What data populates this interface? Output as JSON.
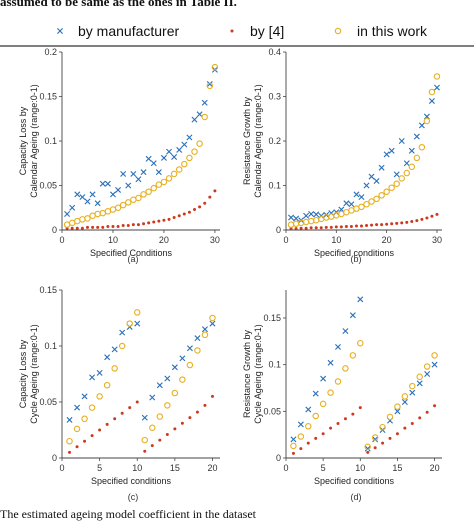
{
  "header_text": "assumed to be same as the ones in Table II.",
  "footer_text": "The  estimated  ageing  model  coefficient  in  the  dataset",
  "legend": [
    {
      "label": "by manufacturer",
      "marker": "x",
      "color": "#2a6fb8"
    },
    {
      "label": "by [4]",
      "marker": "dot",
      "color": "#cc3a1e"
    },
    {
      "label": "in this work",
      "marker": "circle",
      "color": "#e8b020"
    }
  ],
  "colors": {
    "manufacturer": "#2a6fb8",
    "ref4": "#cc3a1e",
    "this_work": "#e8b020"
  },
  "chart_data": [
    {
      "id": "a",
      "type": "scatter",
      "caption": "(a)",
      "xlabel": "Specified Conditions",
      "ylabel": [
        "Capacity Loss by",
        "Calendar Ageing (range:0-1)"
      ],
      "xlim": [
        0,
        31
      ],
      "ylim": [
        0,
        0.2
      ],
      "xticks": [
        0,
        10,
        20,
        30
      ],
      "yticks": [
        0,
        0.05,
        0.1,
        0.15,
        0.2
      ],
      "yticklabels": [
        "0",
        "0.05",
        "0.1",
        "0.15",
        "0.2"
      ],
      "x": [
        1,
        2,
        3,
        4,
        5,
        6,
        7,
        8,
        9,
        10,
        11,
        12,
        13,
        14,
        15,
        16,
        17,
        18,
        19,
        20,
        21,
        22,
        23,
        24,
        25,
        26,
        27,
        28,
        29,
        30
      ],
      "series": [
        {
          "name": "by manufacturer",
          "values": [
            0.018,
            0.025,
            0.04,
            0.037,
            0.032,
            0.04,
            0.03,
            0.052,
            0.052,
            0.04,
            0.045,
            0.063,
            0.05,
            0.063,
            0.057,
            0.065,
            0.08,
            0.075,
            0.065,
            0.081,
            0.088,
            0.082,
            0.09,
            0.096,
            0.104,
            0.124,
            0.13,
            0.143,
            0.164,
            0.18
          ]
        },
        {
          "name": "by [4]",
          "values": [
            0.002,
            0.002,
            0.002,
            0.002,
            0.003,
            0.003,
            0.003,
            0.003,
            0.004,
            0.004,
            0.004,
            0.005,
            0.005,
            0.006,
            0.006,
            0.007,
            0.008,
            0.009,
            0.01,
            0.011,
            0.012,
            0.014,
            0.016,
            0.018,
            0.02,
            0.023,
            0.026,
            0.03,
            0.037,
            0.044
          ]
        },
        {
          "name": "in this work",
          "values": [
            0.006,
            0.008,
            0.01,
            0.012,
            0.013,
            0.016,
            0.018,
            0.019,
            0.021,
            0.023,
            0.025,
            0.028,
            0.031,
            0.034,
            0.036,
            0.04,
            0.043,
            0.047,
            0.051,
            0.054,
            0.058,
            0.063,
            0.068,
            0.074,
            0.081,
            0.088,
            0.097,
            0.127,
            0.162,
            0.183
          ]
        }
      ]
    },
    {
      "id": "b",
      "type": "scatter",
      "caption": "(b)",
      "xlabel": "Specified conditions",
      "ylabel": [
        "Resistance Growth by",
        "Calendar Ageing (range:0-1)"
      ],
      "xlim": [
        0,
        31
      ],
      "ylim": [
        0,
        0.4
      ],
      "xticks": [
        0,
        10,
        20,
        30
      ],
      "yticks": [
        0,
        0.1,
        0.2,
        0.3,
        0.4
      ],
      "yticklabels": [
        "0",
        "0.1",
        "0.2",
        "0.3",
        "0.4"
      ],
      "x": [
        1,
        2,
        3,
        4,
        5,
        6,
        7,
        8,
        9,
        10,
        11,
        12,
        13,
        14,
        15,
        16,
        17,
        18,
        19,
        20,
        21,
        22,
        23,
        24,
        25,
        26,
        27,
        28,
        29,
        30
      ],
      "series": [
        {
          "name": "by manufacturer",
          "values": [
            0.028,
            0.026,
            0.022,
            0.032,
            0.036,
            0.035,
            0.032,
            0.034,
            0.038,
            0.04,
            0.046,
            0.06,
            0.058,
            0.08,
            0.074,
            0.1,
            0.12,
            0.11,
            0.14,
            0.17,
            0.178,
            0.125,
            0.2,
            0.15,
            0.178,
            0.21,
            0.235,
            0.255,
            0.29,
            0.32
          ]
        },
        {
          "name": "by [4]",
          "values": [
            0.003,
            0.003,
            0.004,
            0.004,
            0.005,
            0.005,
            0.005,
            0.006,
            0.006,
            0.007,
            0.007,
            0.008,
            0.008,
            0.009,
            0.009,
            0.01,
            0.011,
            0.012,
            0.012,
            0.013,
            0.014,
            0.015,
            0.016,
            0.017,
            0.019,
            0.021,
            0.024,
            0.027,
            0.031,
            0.035
          ]
        },
        {
          "name": "in this work",
          "values": [
            0.012,
            0.014,
            0.016,
            0.018,
            0.02,
            0.022,
            0.025,
            0.028,
            0.03,
            0.033,
            0.036,
            0.04,
            0.044,
            0.048,
            0.052,
            0.058,
            0.064,
            0.07,
            0.078,
            0.086,
            0.095,
            0.104,
            0.116,
            0.128,
            0.142,
            0.162,
            0.186,
            0.245,
            0.31,
            0.345
          ]
        }
      ]
    },
    {
      "id": "c",
      "type": "scatter",
      "caption": "(c)",
      "xlabel": "Specified conditions",
      "ylabel": [
        "Capacity Loss by",
        "Cycle Ageing (range:0-1)"
      ],
      "xlim": [
        0,
        21
      ],
      "ylim": [
        0,
        0.15
      ],
      "xticks": [
        0,
        5,
        10,
        15,
        20
      ],
      "yticks": [
        0,
        0.05,
        0.1,
        0.15
      ],
      "yticklabels": [
        "0",
        "0.05",
        "0.1",
        "0.15"
      ],
      "x": [
        1,
        2,
        3,
        4,
        5,
        6,
        7,
        8,
        9,
        10,
        11,
        12,
        13,
        14,
        15,
        16,
        17,
        18,
        19,
        20
      ],
      "series": [
        {
          "name": "by manufacturer",
          "values": [
            0.034,
            0.045,
            0.055,
            0.072,
            0.076,
            0.09,
            0.097,
            0.112,
            0.117,
            0.12,
            0.036,
            0.054,
            0.065,
            0.071,
            0.081,
            0.089,
            0.098,
            0.107,
            0.115,
            0.12
          ]
        },
        {
          "name": "by [4]",
          "values": [
            0.005,
            0.01,
            0.015,
            0.02,
            0.025,
            0.03,
            0.035,
            0.04,
            0.045,
            0.05,
            0.006,
            0.011,
            0.016,
            0.021,
            0.026,
            0.031,
            0.036,
            0.041,
            0.047,
            0.055
          ]
        },
        {
          "name": "in this work",
          "values": [
            0.015,
            0.026,
            0.035,
            0.045,
            0.055,
            0.065,
            0.08,
            0.1,
            0.12,
            0.13,
            0.016,
            0.027,
            0.037,
            0.047,
            0.058,
            0.07,
            0.083,
            0.096,
            0.11,
            0.125
          ]
        }
      ]
    },
    {
      "id": "d",
      "type": "scatter",
      "caption": "(d)",
      "xlabel": "Specified conditions",
      "ylabel": [
        "Resistance Growth by",
        "Cycle Ageing (range:0-1)"
      ],
      "xlim": [
        0,
        21
      ],
      "ylim": [
        0,
        0.18
      ],
      "xticks": [
        0,
        5,
        10,
        15,
        20
      ],
      "yticks": [
        0,
        0.05,
        0.1,
        0.15
      ],
      "yticklabels": [
        "0",
        "0.05",
        "0.1",
        "0.15"
      ],
      "x": [
        1,
        2,
        3,
        4,
        5,
        6,
        7,
        8,
        9,
        10,
        11,
        12,
        13,
        14,
        15,
        16,
        17,
        18,
        19,
        20
      ],
      "series": [
        {
          "name": "by manufacturer",
          "values": [
            0.02,
            0.036,
            0.052,
            0.069,
            0.085,
            0.102,
            0.119,
            0.136,
            0.153,
            0.17,
            0.01,
            0.02,
            0.03,
            0.04,
            0.05,
            0.06,
            0.07,
            0.08,
            0.09,
            0.1
          ]
        },
        {
          "name": "by [4]",
          "values": [
            0.005,
            0.01,
            0.016,
            0.021,
            0.026,
            0.032,
            0.037,
            0.042,
            0.047,
            0.054,
            0.006,
            0.011,
            0.016,
            0.021,
            0.026,
            0.032,
            0.037,
            0.043,
            0.049,
            0.056
          ]
        },
        {
          "name": "in this work",
          "values": [
            0.013,
            0.023,
            0.034,
            0.045,
            0.058,
            0.07,
            0.082,
            0.096,
            0.11,
            0.123,
            0.012,
            0.022,
            0.033,
            0.044,
            0.055,
            0.066,
            0.077,
            0.087,
            0.098,
            0.11
          ]
        }
      ]
    }
  ]
}
